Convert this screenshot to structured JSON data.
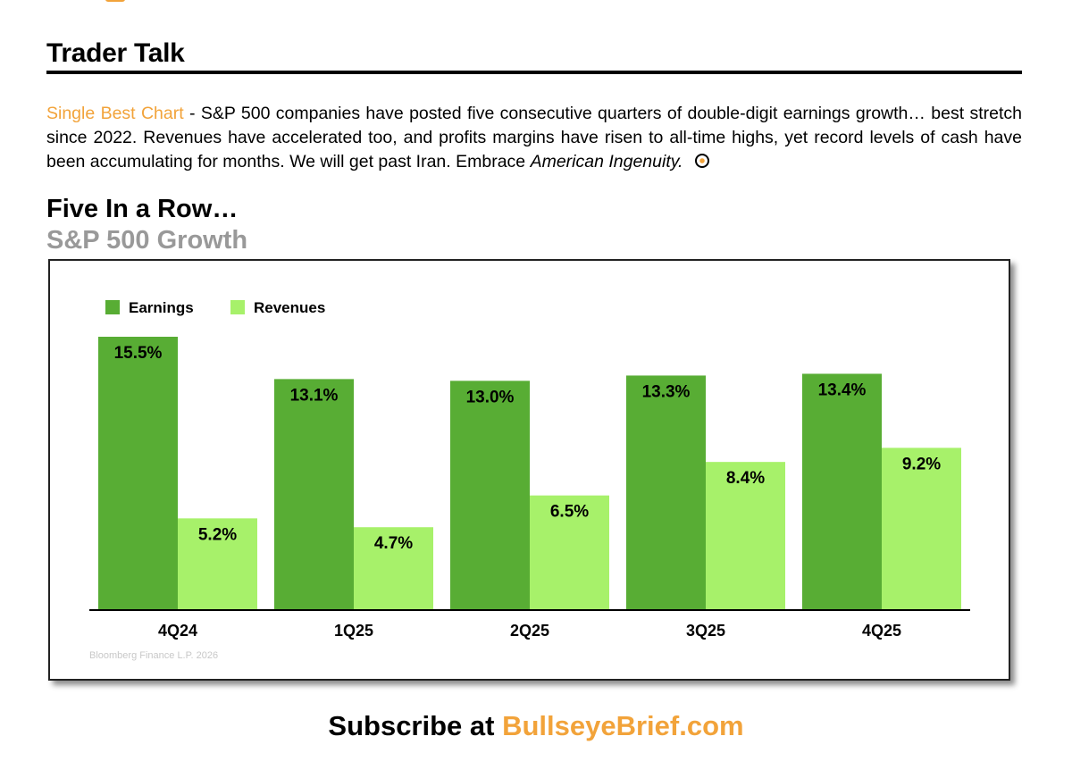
{
  "colors": {
    "accent": "#f2a33a",
    "earnings": "#58ad34",
    "revenues": "#a7f16a",
    "subtitle": "#999999"
  },
  "header": {
    "title": "Trader Talk"
  },
  "intro": {
    "highlight": "Single Best Chart",
    "text": " - S&P 500 companies have posted five consecutive quarters of double-digit earnings growth… best stretch since 2022. Revenues have accelerated too, and profits margins have risen to all-time highs, yet record levels of cash have been accumulating for months. We will get past Iran. Embrace ",
    "emphasis": "American Ingenuity.",
    "icon": "bullseye-icon"
  },
  "chart_data": {
    "type": "bar",
    "title": "Five In a Row…",
    "subtitle": "S&P 500 Growth",
    "categories": [
      "4Q24",
      "1Q25",
      "2Q25",
      "3Q25",
      "4Q25"
    ],
    "series": [
      {
        "name": "Earnings",
        "values": [
          15.5,
          13.1,
          13.0,
          13.3,
          13.4
        ],
        "labels": [
          "15.5%",
          "13.1%",
          "13.0%",
          "13.3%",
          "13.4%"
        ]
      },
      {
        "name": "Revenues",
        "values": [
          5.2,
          4.7,
          6.5,
          8.4,
          9.2
        ],
        "labels": [
          "5.2%",
          "4.7%",
          "6.5%",
          "8.4%",
          "9.2%"
        ]
      }
    ],
    "ylim": [
      0,
      15.5
    ],
    "legend": "top-left",
    "grid": false,
    "source": "Bloomberg Finance L.P. 2026"
  },
  "footer": {
    "prefix": "Subscribe at ",
    "site": "BullseyeBrief.com"
  }
}
